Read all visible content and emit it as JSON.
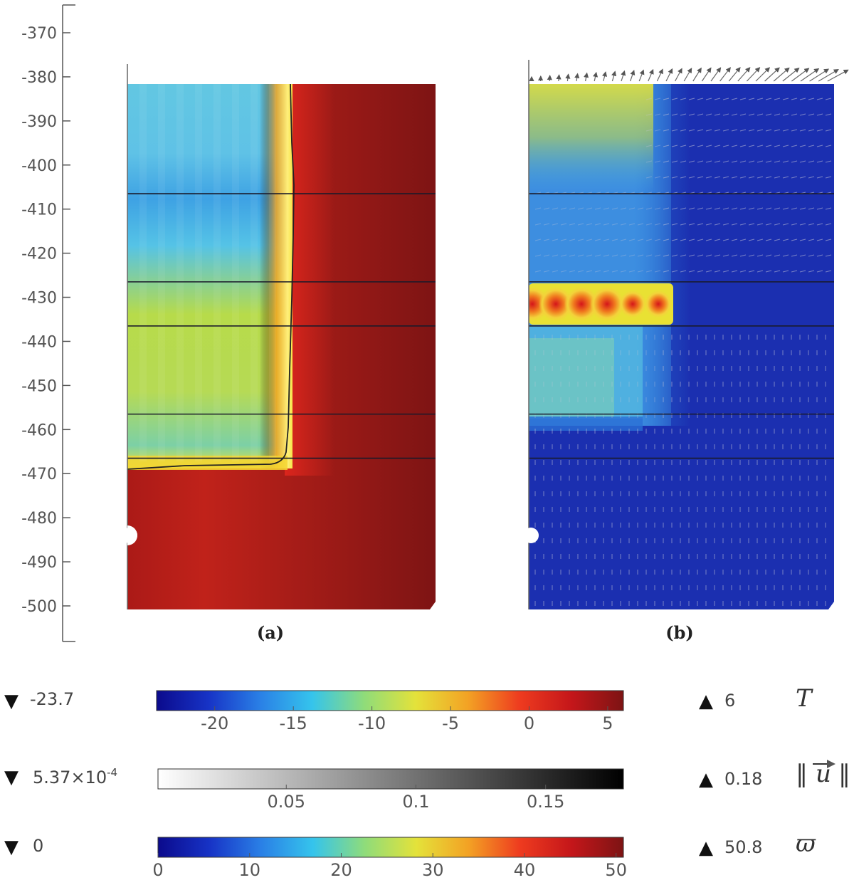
{
  "chart_data": [
    {
      "type": "heatmap",
      "panel_label": "(a)",
      "ylim": [
        -505,
        -365
      ],
      "yticks": [
        -370,
        -380,
        -390,
        -400,
        -410,
        -420,
        -430,
        -440,
        -450,
        -460,
        -470,
        -480,
        -490,
        -500
      ],
      "top": -382,
      "bottom": -500,
      "layer_boundaries": [
        -406.5,
        -426.5,
        -436.5,
        -456.5,
        -466.5
      ],
      "colorbar": "T",
      "colormap": "rainbow"
    },
    {
      "type": "heatmap",
      "panel_label": "(b)",
      "ylim": [
        -505,
        -365
      ],
      "top": -382,
      "bottom": -500,
      "layer_boundaries": [
        -406.5,
        -426.5,
        -436.5,
        -456.5,
        -466.5
      ],
      "colorbar": "ϖ",
      "arrows": "‖u‖",
      "colormap": "rainbow"
    }
  ],
  "colorbars": [
    {
      "symbol": "T",
      "min_label": "-23.7",
      "max_label": "6",
      "min": -23.7,
      "max": 6,
      "ticks": [
        -20,
        -15,
        -10,
        -5,
        0,
        5
      ],
      "tick_labels": [
        "-20",
        "-15",
        "-10",
        "-5",
        "0",
        "5"
      ],
      "colormap": "rainbow"
    },
    {
      "symbol": "‖u‖",
      "min_label_base": "5.37×10",
      "min_label_exp": "-4",
      "max_label": "0.18",
      "min": 0.000537,
      "max": 0.18,
      "ticks": [
        0.05,
        0.1,
        0.15
      ],
      "tick_labels": [
        "0.05",
        "0.1",
        "0.15"
      ],
      "colormap": "gray"
    },
    {
      "symbol": "ϖ",
      "min_label": "0",
      "max_label": "50.8",
      "min": 0,
      "max": 50.8,
      "ticks": [
        0,
        10,
        20,
        30,
        40,
        50
      ],
      "tick_labels": [
        "0",
        "10",
        "20",
        "30",
        "40",
        "50"
      ],
      "colormap": "rainbow"
    }
  ],
  "colors": {
    "rainbow": [
      "#0b0a8c",
      "#1733c6",
      "#2a80e6",
      "#35c4ec",
      "#8fdc7a",
      "#e4e23a",
      "#f3a224",
      "#ee3b1f",
      "#c4161a",
      "#7d1414"
    ],
    "gray": [
      "#ffffff",
      "#000000"
    ],
    "frozen_line": "#222222",
    "layer_line": "#1a1a2a",
    "arrow": "#c8c8d8",
    "axis": "#555555"
  }
}
